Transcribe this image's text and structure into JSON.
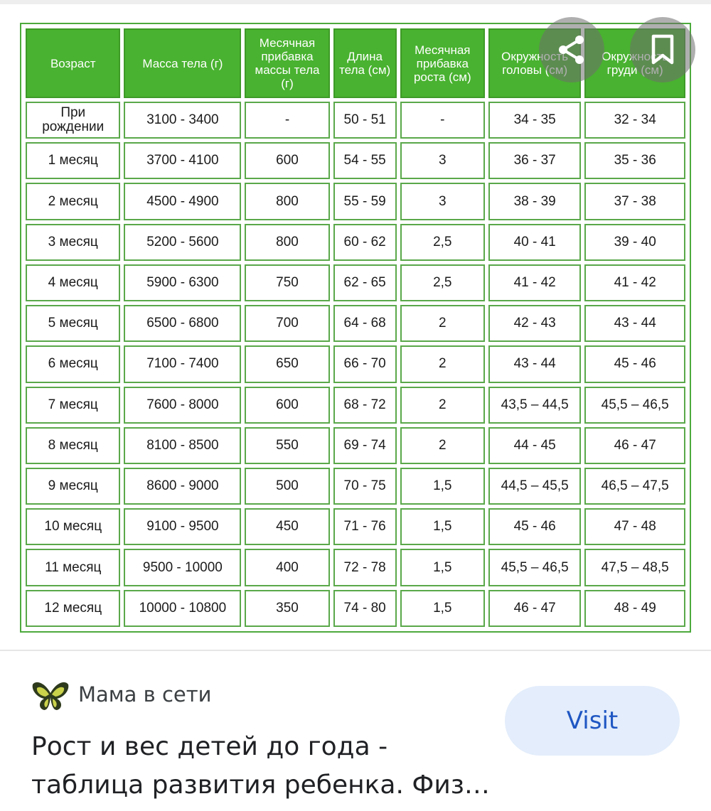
{
  "table": {
    "headers": [
      "Возраст",
      "Масса тела (г)",
      "Месячная прибавка массы тела (г)",
      "Длина тела (см)",
      "Месячная прибавка роста (см)",
      "Окружность головы (см)",
      "Окружность груди (см)"
    ],
    "rows": [
      [
        "При рождении",
        "3100 - 3400",
        "-",
        "50 - 51",
        "-",
        "34 - 35",
        "32 - 34"
      ],
      [
        "1 месяц",
        "3700 - 4100",
        "600",
        "54 - 55",
        "3",
        "36 - 37",
        "35 - 36"
      ],
      [
        "2 месяц",
        "4500 - 4900",
        "800",
        "55 - 59",
        "3",
        "38 - 39",
        "37 - 38"
      ],
      [
        "3 месяц",
        "5200 - 5600",
        "800",
        "60 - 62",
        "2,5",
        "40 - 41",
        "39 - 40"
      ],
      [
        "4 месяц",
        "5900 - 6300",
        "750",
        "62 - 65",
        "2,5",
        "41 - 42",
        "41 - 42"
      ],
      [
        "5 месяц",
        "6500 - 6800",
        "700",
        "64 - 68",
        "2",
        "42 - 43",
        "43 - 44"
      ],
      [
        "6 месяц",
        "7100 - 7400",
        "650",
        "66 - 70",
        "2",
        "43 - 44",
        "45 - 46"
      ],
      [
        "7 месяц",
        "7600 - 8000",
        "600",
        "68 - 72",
        "2",
        "43,5 – 44,5",
        "45,5 – 46,5"
      ],
      [
        "8 месяц",
        "8100 - 8500",
        "550",
        "69 - 74",
        "2",
        "44 - 45",
        "46 - 47"
      ],
      [
        "9 месяц",
        "8600 - 9000",
        "500",
        "70 - 75",
        "1,5",
        "44,5 – 45,5",
        "46,5 – 47,5"
      ],
      [
        "10 месяц",
        "9100 - 9500",
        "450",
        "71 - 76",
        "1,5",
        "45 - 46",
        "47 - 48"
      ],
      [
        "11 месяц",
        "9500 - 10000",
        "400",
        "72 - 78",
        "1,5",
        "45,5 – 46,5",
        "47,5 – 48,5"
      ],
      [
        "12 месяц",
        "10000 - 10800",
        "350",
        "74 - 80",
        "1,5",
        "46 - 47",
        "48 - 49"
      ]
    ]
  },
  "overlay": {
    "share_icon": "share-icon",
    "save_icon": "bookmark-icon"
  },
  "result": {
    "source_icon": "butterfly-icon",
    "source": "Мама в сети",
    "title": "Рост и вес детей до года - таблица развития ребенка. Физ…",
    "visit_label": "Visit"
  },
  "colors": {
    "header_green": "#49b230",
    "border_green": "#5aa84a",
    "visit_bg": "#e3edfb",
    "visit_text": "#1f57c3"
  }
}
